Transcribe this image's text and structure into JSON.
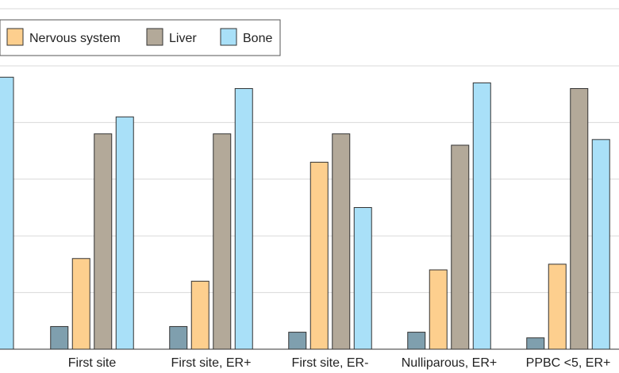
{
  "chart_data": {
    "type": "bar",
    "categories": [
      "First site",
      "First site, ER+",
      "First site, ER-",
      "Nulliparous, ER+",
      "PPBC <5, ER+"
    ],
    "series": [
      {
        "name": "",
        "color": "#7f9fae",
        "values": [
          0.04,
          0.04,
          0.03,
          0.03,
          0.02
        ]
      },
      {
        "name": "Nervous system",
        "color": "#fdcf8e",
        "values": [
          0.16,
          0.12,
          0.33,
          0.14,
          0.15
        ]
      },
      {
        "name": "Liver",
        "color": "#b3a999",
        "values": [
          0.38,
          0.38,
          0.38,
          0.36,
          0.46
        ]
      },
      {
        "name": "Bone",
        "color": "#a9e0f8",
        "values": [
          0.41,
          0.46,
          0.25,
          0.47,
          0.37
        ]
      }
    ],
    "partial_bar": {
      "color": "#a9e0f8",
      "value": 0.48
    },
    "ylim": [
      0,
      0.5
    ],
    "grid": true,
    "legend": {
      "placement": "top-left",
      "entries": [
        {
          "label": "Nervous system",
          "color": "#fdcf8e"
        },
        {
          "label": "Liver",
          "color": "#b3a999"
        },
        {
          "label": "Bone",
          "color": "#a9e0f8"
        }
      ]
    }
  }
}
